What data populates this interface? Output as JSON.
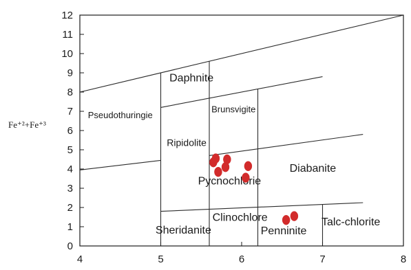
{
  "chart_data": {
    "type": "scatter",
    "title": "",
    "xlabel": "",
    "ylabel": "Fe⁺²+Fe⁺³",
    "xlim": [
      4,
      8
    ],
    "ylim": [
      0,
      12
    ],
    "xticks": [
      "4",
      "5",
      "6",
      "7",
      "8"
    ],
    "yticks": [
      "0",
      "1",
      "2",
      "3",
      "4",
      "5",
      "6",
      "7",
      "8",
      "9",
      "10",
      "11",
      "12"
    ],
    "grid": false,
    "boundary_lines": [
      {
        "name": "upper",
        "points": [
          [
            4,
            8.0
          ],
          [
            8,
            12.0
          ]
        ]
      },
      {
        "name": "daphnite-bottom",
        "points": [
          [
            5,
            7.2
          ],
          [
            7.0,
            8.8
          ]
        ]
      },
      {
        "name": "brunsvigite-bottom",
        "points": [
          [
            5.6,
            4.7
          ],
          [
            7.5,
            5.8
          ]
        ]
      },
      {
        "name": "left-lower",
        "points": [
          [
            4,
            3.95
          ],
          [
            5,
            4.45
          ]
        ]
      },
      {
        "name": "bottom-sloped",
        "points": [
          [
            5,
            1.8
          ],
          [
            7.5,
            2.25
          ]
        ]
      },
      {
        "name": "v-5.0",
        "points": [
          [
            5,
            0
          ],
          [
            5,
            9.0
          ]
        ]
      },
      {
        "name": "v-5.6",
        "points": [
          [
            5.6,
            0
          ],
          [
            5.6,
            9.6
          ]
        ]
      },
      {
        "name": "v-6.2",
        "points": [
          [
            6.2,
            0
          ],
          [
            6.2,
            8.15
          ]
        ]
      },
      {
        "name": "v-7.0",
        "points": [
          [
            7.0,
            0
          ],
          [
            7.0,
            2.15
          ]
        ]
      }
    ],
    "field_labels": [
      {
        "text": "Daphnite",
        "x": 5.38,
        "y": 8.55
      },
      {
        "text": "Pseudothuringie",
        "x": 4.5,
        "y": 6.65
      },
      {
        "text": "Brunsvigite",
        "x": 5.9,
        "y": 6.95
      },
      {
        "text": "Ripidolite",
        "x": 5.32,
        "y": 5.2
      },
      {
        "text": "Pycnochlorie",
        "x": 5.85,
        "y": 3.2
      },
      {
        "text": "Diabanite",
        "x": 6.88,
        "y": 3.85
      },
      {
        "text": "Clinochlore",
        "x": 5.98,
        "y": 1.3
      },
      {
        "text": "Sheridanite",
        "x": 5.28,
        "y": 0.65
      },
      {
        "text": "Penninite",
        "x": 6.52,
        "y": 0.6
      },
      {
        "text": "Talc-chlorite",
        "x": 7.35,
        "y": 1.08
      }
    ],
    "points": [
      {
        "x": 5.65,
        "y": 4.35
      },
      {
        "x": 5.68,
        "y": 4.55
      },
      {
        "x": 5.71,
        "y": 3.85
      },
      {
        "x": 5.8,
        "y": 4.1
      },
      {
        "x": 5.82,
        "y": 4.5
      },
      {
        "x": 6.05,
        "y": 3.55
      },
      {
        "x": 6.08,
        "y": 4.15
      },
      {
        "x": 6.55,
        "y": 1.35
      },
      {
        "x": 6.65,
        "y": 1.55
      }
    ],
    "colors": {
      "points": "#d22b2b",
      "lines": "#2b2b2b",
      "axes": "#1a1a1a"
    }
  }
}
